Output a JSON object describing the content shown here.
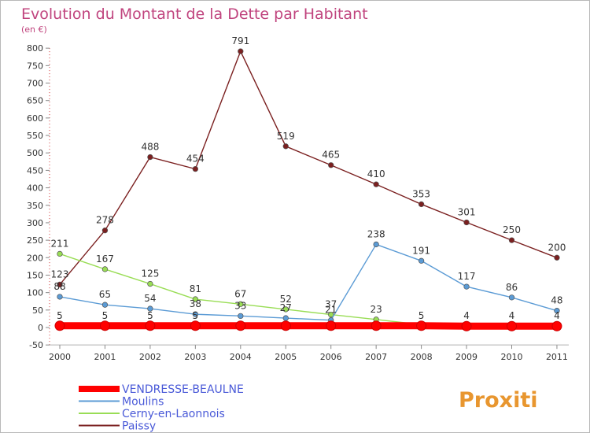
{
  "chart_data": {
    "type": "line",
    "title": "Evolution du Montant de la Dette par Habitant",
    "subtitle": "(en €)",
    "x": [
      "2000",
      "2001",
      "2002",
      "2003",
      "2004",
      "2005",
      "2006",
      "2007",
      "2008",
      "2009",
      "2010",
      "2011"
    ],
    "ylim": [
      -50,
      800
    ],
    "yticks": [
      -50,
      0,
      50,
      100,
      150,
      200,
      250,
      300,
      350,
      400,
      450,
      500,
      550,
      600,
      650,
      700,
      750,
      800
    ],
    "grid": false,
    "legend_position": "bottom-left",
    "series": [
      {
        "name": "VENDRESSE-BEAULNE",
        "color": "#ff0000",
        "values": [
          5,
          5,
          5,
          5,
          5,
          5,
          5,
          5,
          5,
          4,
          4,
          4
        ],
        "labels": [
          "5",
          "5",
          "5",
          "5",
          "",
          "",
          "",
          "",
          "5",
          "4",
          "4",
          "4"
        ]
      },
      {
        "name": "Moulins",
        "color": "#5b9bd5",
        "values": [
          88,
          65,
          54,
          38,
          33,
          27,
          21,
          238,
          191,
          117,
          86,
          48
        ],
        "labels": [
          "88",
          "65",
          "54",
          "38",
          "33",
          "27",
          "21",
          "238",
          "191",
          "117",
          "86",
          "48"
        ]
      },
      {
        "name": "Cerny-en-Laonnois",
        "color": "#99dd55",
        "values": [
          211,
          167,
          125,
          81,
          67,
          52,
          37,
          23,
          8,
          8,
          8,
          8
        ],
        "labels": [
          "211",
          "167",
          "125",
          "81",
          "67",
          "52",
          "37",
          "23",
          "",
          "",
          "",
          ""
        ]
      },
      {
        "name": "Paissy",
        "color": "#7b2020",
        "values": [
          123,
          278,
          488,
          454,
          791,
          519,
          465,
          410,
          353,
          301,
          250,
          200
        ],
        "labels": [
          "123",
          "278",
          "488",
          "454",
          "791",
          "519",
          "465",
          "410",
          "353",
          "301",
          "250",
          "200"
        ]
      }
    ]
  },
  "brand": {
    "logo_text": "Proxiti"
  }
}
